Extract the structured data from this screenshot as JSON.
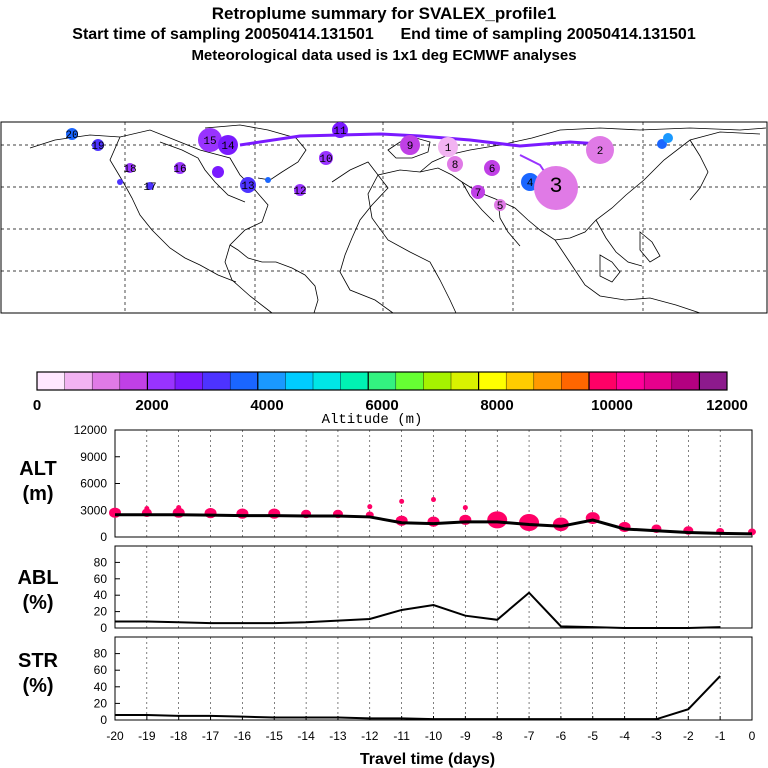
{
  "header": {
    "title": "Retroplume summary for SVALEX_profile1",
    "start_label": "Start time of sampling",
    "start_value": "20050414.131501",
    "end_label": "End time of sampling",
    "end_value": "20050414.131501",
    "meteo": "Meteorological data used is 1x1 deg ECMWF analyses"
  },
  "map": {
    "plume_labels": [
      "20",
      "19",
      "18",
      "17",
      "16",
      "15",
      "14",
      "13",
      "12",
      "11",
      "10",
      "9",
      "8",
      "7",
      "6",
      "5",
      "4",
      "3",
      "2",
      "1"
    ]
  },
  "colorbar": {
    "title": "Altitude (m)",
    "ticks": [
      "0",
      "2000",
      "4000",
      "6000",
      "8000",
      "10000",
      "12000"
    ],
    "colors": [
      "#ffe8ff",
      "#f2b3f2",
      "#e07ae6",
      "#c040e6",
      "#9933ff",
      "#7a1aff",
      "#4d33ff",
      "#1a66ff",
      "#1a99ff",
      "#00ccff",
      "#00e6e6",
      "#00f2b3",
      "#33f280",
      "#66ff33",
      "#a6f200",
      "#d9f200",
      "#ffff00",
      "#ffcc00",
      "#ff9900",
      "#ff6600",
      "#ff0066",
      "#ff0099",
      "#e6008c",
      "#b30080",
      "#8c1a8c"
    ]
  },
  "chart_data": [
    {
      "type": "line",
      "name": "ALT",
      "ylabel_line1": "ALT",
      "ylabel_line2": "(m)",
      "ylim": [
        0,
        12000
      ],
      "yticks": [
        "12000",
        "9000",
        "6000",
        "3000",
        "0"
      ],
      "x": [
        -20,
        -19,
        -18,
        -17,
        -16,
        -15,
        -14,
        -13,
        -12,
        -11,
        -10,
        -9,
        -8,
        -7,
        -6,
        -5,
        -4,
        -3,
        -2,
        -1,
        0
      ],
      "values": [
        2500,
        2500,
        2500,
        2450,
        2400,
        2400,
        2350,
        2350,
        2250,
        1600,
        1500,
        1700,
        1700,
        1400,
        1200,
        1900,
        900,
        700,
        500,
        400,
        350
      ],
      "scatter_color": "#ff0066"
    },
    {
      "type": "line",
      "name": "ABL",
      "ylabel_line1": "ABL",
      "ylabel_line2": "(%)",
      "ylim": [
        0,
        100
      ],
      "yticks": [
        "80",
        "60",
        "40",
        "20",
        "0"
      ],
      "x": [
        -20,
        -19,
        -18,
        -17,
        -16,
        -15,
        -14,
        -13,
        -12,
        -11,
        -10,
        -9,
        -8,
        -7,
        -6,
        -5,
        -4,
        -3,
        -2,
        -1
      ],
      "values": [
        8,
        8,
        7,
        6,
        6,
        6,
        7,
        9,
        11,
        22,
        28,
        15,
        10,
        43,
        2,
        1,
        0,
        0,
        0,
        1
      ]
    },
    {
      "type": "line",
      "name": "STR",
      "ylabel_line1": "STR",
      "ylabel_line2": "(%)",
      "ylim": [
        0,
        100
      ],
      "yticks": [
        "80",
        "60",
        "40",
        "20",
        "0"
      ],
      "xlabel": "Travel time (days)",
      "xticks": [
        "-20",
        "-19",
        "-18",
        "-17",
        "-16",
        "-15",
        "-14",
        "-13",
        "-12",
        "-11",
        "-10",
        "-9",
        "-8",
        "-7",
        "-6",
        "-5",
        "-4",
        "-3",
        "-2",
        "-1",
        "0"
      ],
      "x": [
        -20,
        -19,
        -18,
        -17,
        -16,
        -15,
        -14,
        -13,
        -12,
        -11,
        -10,
        -9,
        -8,
        -7,
        -6,
        -5,
        -4,
        -3,
        -2,
        -1
      ],
      "values": [
        6,
        6,
        5,
        5,
        4,
        3,
        3,
        3,
        2,
        2,
        1,
        1,
        1,
        1,
        1,
        1,
        1,
        1,
        13,
        53
      ]
    }
  ]
}
